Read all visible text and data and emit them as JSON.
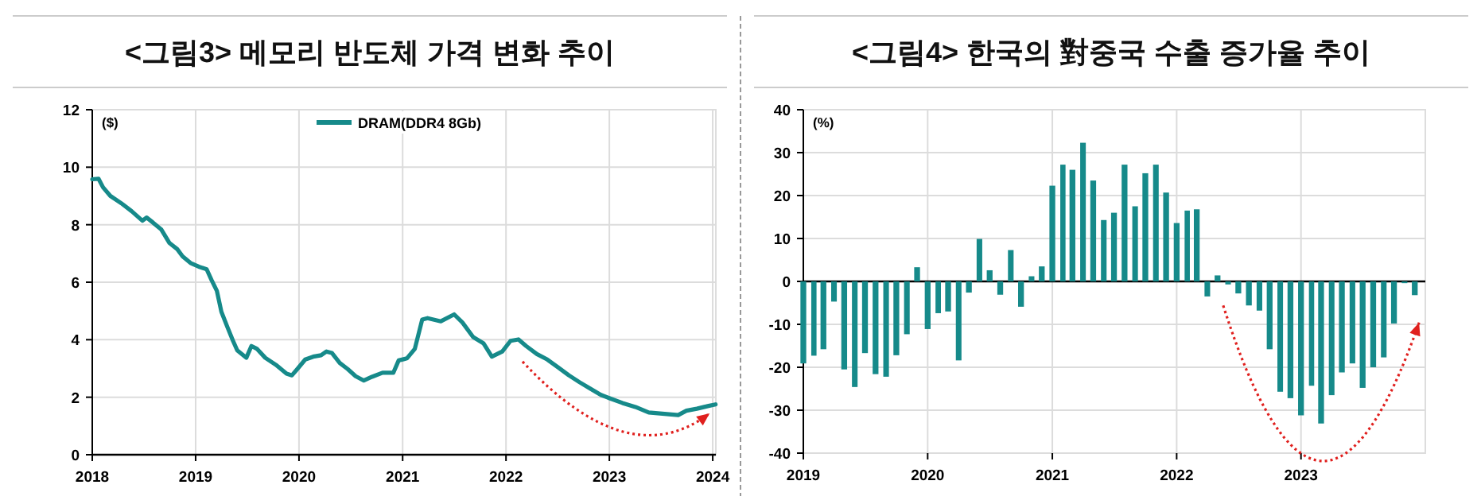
{
  "chart_data": [
    {
      "type": "line",
      "title": "<그림3> 메모리 반도체 가격 변화 추이",
      "ylabel": "($)",
      "x": [
        "2018-01-01",
        "2018-01-23",
        "2018-02-08",
        "2018-03-06",
        "2018-04-13",
        "2018-05-20",
        "2018-06-27",
        "2018-07-12",
        "2018-08-04",
        "2018-09-02",
        "2018-09-30",
        "2018-10-28",
        "2018-11-16",
        "2018-12-14",
        "2019-01-12",
        "2019-02-09",
        "2019-02-26",
        "2019-03-17",
        "2019-04-02",
        "2019-04-24",
        "2019-05-13",
        "2019-05-28",
        "2019-06-29",
        "2019-07-17",
        "2019-08-06",
        "2019-09-04",
        "2019-10-11",
        "2019-11-18",
        "2019-12-07",
        "2019-12-26",
        "2020-01-23",
        "2020-02-20",
        "2020-03-19",
        "2020-04-07",
        "2020-04-26",
        "2020-05-24",
        "2020-06-21",
        "2020-07-19",
        "2020-08-17",
        "2020-09-15",
        "2020-10-22",
        "2020-11-29",
        "2020-12-18",
        "2021-01-16",
        "2021-02-13",
        "2021-03-11",
        "2021-03-30",
        "2021-05-16",
        "2021-07-02",
        "2021-07-31",
        "2021-09-07",
        "2021-10-14",
        "2021-11-12",
        "2021-12-19",
        "2022-01-17",
        "2022-02-14",
        "2022-03-13",
        "2022-04-20",
        "2022-05-27",
        "2022-07-04",
        "2022-08-11",
        "2022-09-18",
        "2022-10-25",
        "2022-12-02",
        "2022-12-31",
        "2023-02-16",
        "2023-04-03",
        "2023-05-20",
        "2023-07-15",
        "2023-09-01",
        "2023-09-30",
        "2023-11-06",
        "2023-12-14",
        "2024-01-11"
      ],
      "series": [
        {
          "name": "DRAM(DDR4 8Gb)",
          "color": "#168a8a",
          "values": [
            9.58,
            9.6,
            9.3,
            9.0,
            8.75,
            8.47,
            8.14,
            8.25,
            8.07,
            7.83,
            7.37,
            7.15,
            6.9,
            6.67,
            6.54,
            6.45,
            6.08,
            5.7,
            4.97,
            4.42,
            3.96,
            3.63,
            3.37,
            3.78,
            3.68,
            3.37,
            3.13,
            2.82,
            2.76,
            2.98,
            3.31,
            3.41,
            3.46,
            3.59,
            3.54,
            3.19,
            2.98,
            2.73,
            2.58,
            2.71,
            2.85,
            2.85,
            3.28,
            3.35,
            3.68,
            4.7,
            4.75,
            4.64,
            4.88,
            4.6,
            4.09,
            3.87,
            3.41,
            3.59,
            3.96,
            4.01,
            3.78,
            3.5,
            3.31,
            3.04,
            2.76,
            2.52,
            2.3,
            2.08,
            1.97,
            1.8,
            1.66,
            1.47,
            1.42,
            1.38,
            1.53,
            1.6,
            1.69,
            1.75
          ]
        }
      ],
      "xlim": [
        "2018-01-01",
        "2024-01-12"
      ],
      "xticks": [
        "2018",
        "2019",
        "2020",
        "2021",
        "2022",
        "2023",
        "2024"
      ],
      "ylim": [
        0,
        12
      ],
      "yticks": [
        0,
        2,
        4,
        6,
        8,
        10,
        12
      ],
      "grid": true,
      "legend": "top"
    },
    {
      "type": "bar",
      "title": "<그림4> 한국의 對중국 수출 증가율 추이",
      "ylabel": "(%)",
      "x": [
        "2019-01",
        "2019-02",
        "2019-03",
        "2019-04",
        "2019-05",
        "2019-06",
        "2019-07",
        "2019-08",
        "2019-09",
        "2019-10",
        "2019-11",
        "2019-12",
        "2020-01",
        "2020-02",
        "2020-03",
        "2020-04",
        "2020-05",
        "2020-06",
        "2020-07",
        "2020-08",
        "2020-09",
        "2020-10",
        "2020-11",
        "2020-12",
        "2021-01",
        "2021-02",
        "2021-03",
        "2021-04",
        "2021-05",
        "2021-06",
        "2021-07",
        "2021-08",
        "2021-09",
        "2021-10",
        "2021-11",
        "2021-12",
        "2022-01",
        "2022-02",
        "2022-03",
        "2022-04",
        "2022-05",
        "2022-06",
        "2022-07",
        "2022-08",
        "2022-09",
        "2022-10",
        "2022-11",
        "2022-12",
        "2023-01",
        "2023-02",
        "2023-03",
        "2023-04",
        "2023-05",
        "2023-06",
        "2023-07",
        "2023-08",
        "2023-09",
        "2023-10",
        "2023-11",
        "2023-12"
      ],
      "values": [
        -19.1,
        -17.3,
        -15.8,
        -4.7,
        -20.5,
        -24.6,
        -16.7,
        -21.6,
        -22.2,
        -17.2,
        -12.3,
        3.3,
        -11.1,
        -7.4,
        -7.0,
        -18.4,
        -2.6,
        9.9,
        2.6,
        -3.1,
        7.3,
        -5.9,
        1.2,
        3.5,
        22.3,
        27.2,
        26.0,
        32.3,
        23.5,
        14.3,
        16.0,
        27.2,
        17.5,
        25.2,
        27.2,
        20.7,
        13.6,
        16.5,
        16.8,
        -3.5,
        1.4,
        -0.7,
        -2.8,
        -5.6,
        -6.8,
        -15.8,
        -25.7,
        -27.2,
        -31.2,
        -24.3,
        -33.1,
        -26.5,
        -21.2,
        -19.1,
        -24.8,
        -20.0,
        -17.7,
        -9.8,
        -0.4,
        -3.2
      ],
      "color": "#168a8a",
      "xlim": [
        "2019-01",
        "2024-01"
      ],
      "xticks": [
        "2019",
        "2020",
        "2021",
        "2022",
        "2023"
      ],
      "ylim": [
        -40,
        40
      ],
      "yticks": [
        -40,
        -30,
        -20,
        -10,
        0,
        10,
        20,
        30,
        40
      ],
      "grid": true
    }
  ]
}
